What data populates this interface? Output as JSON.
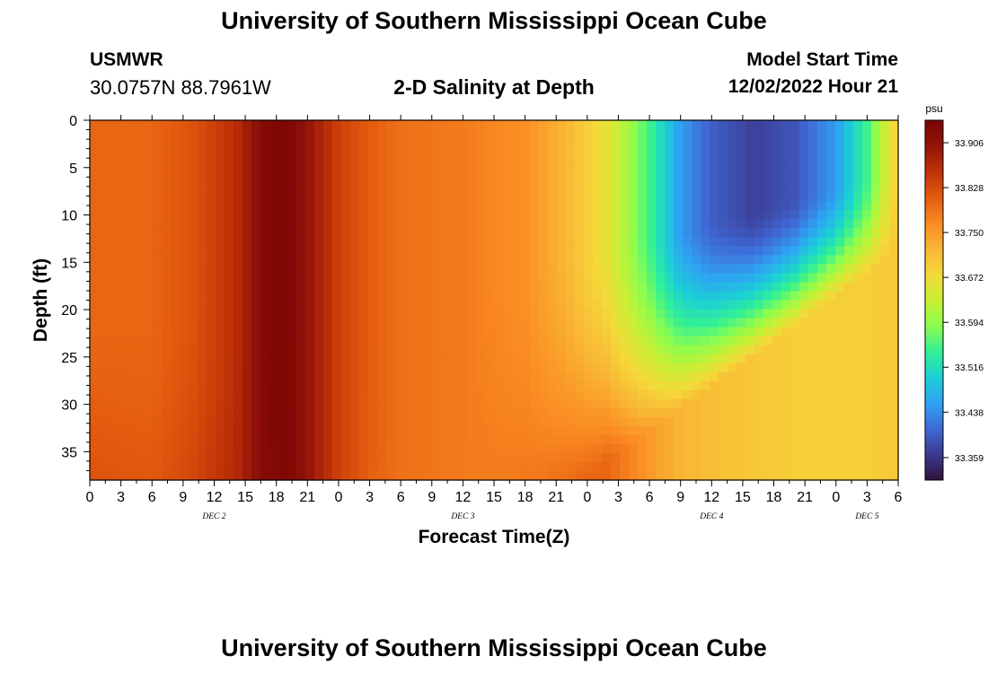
{
  "header": {
    "title": "University of Southern Mississippi Ocean Cube",
    "station": "USMWR",
    "coords": "30.0757N  88.7961W",
    "subtitle": "2-D Salinity at Depth",
    "model_start_label": "Model Start Time",
    "model_start_value": "12/02/2022 Hour 21",
    "footer_title": "University of Southern Mississippi Ocean Cube"
  },
  "chart_data": {
    "type": "heatmap",
    "xlabel": "Forecast Time(Z)",
    "ylabel": "Depth (ft)",
    "x_tick_labels": [
      "0",
      "3",
      "6",
      "9",
      "12",
      "15",
      "18",
      "21",
      "0",
      "3",
      "6",
      "9",
      "12",
      "15",
      "18",
      "21",
      "0",
      "3",
      "6",
      "9",
      "12",
      "15",
      "18",
      "21",
      "0",
      "3",
      "6"
    ],
    "x_range_hours": [
      0,
      78
    ],
    "day_labels": [
      {
        "text": "DEC 2",
        "hour": 12
      },
      {
        "text": "DEC 3",
        "hour": 36
      },
      {
        "text": "DEC 4",
        "hour": 60
      },
      {
        "text": "DEC 5",
        "hour": 75
      }
    ],
    "y_ticks": [
      0,
      5,
      10,
      15,
      20,
      25,
      30,
      35
    ],
    "y_range_ft": [
      0,
      38
    ],
    "colorbar": {
      "unit": "psu",
      "min": 33.32,
      "max": 33.945,
      "ticks": [
        "33.906",
        "33.828",
        "33.750",
        "33.672",
        "33.594",
        "33.516",
        "33.438",
        "33.359"
      ],
      "colors": [
        "#30123b",
        "#3c3a8f",
        "#4069d6",
        "#2fa2f4",
        "#1bd0d5",
        "#32f095",
        "#8cfd4e",
        "#c9ef34",
        "#f5d93a",
        "#f9b534",
        "#fa8a22",
        "#e35a0e",
        "#c03207",
        "#93140a",
        "#7a0403"
      ]
    },
    "salinity_profile": {
      "time_hours": [
        0,
        6,
        10,
        14,
        17,
        19,
        21,
        24,
        27,
        30,
        36,
        42,
        46,
        50,
        54,
        57,
        60,
        64,
        68,
        72,
        75,
        78
      ],
      "surface_psu": [
        33.8,
        33.8,
        33.82,
        33.86,
        33.93,
        33.94,
        33.9,
        33.84,
        33.81,
        33.79,
        33.78,
        33.76,
        33.72,
        33.66,
        33.55,
        33.45,
        33.4,
        33.37,
        33.39,
        33.45,
        33.55,
        33.7
      ],
      "bottom_psu": [
        33.86,
        33.84,
        33.86,
        33.88,
        33.92,
        33.93,
        33.9,
        33.84,
        33.8,
        33.79,
        33.78,
        33.79,
        33.8,
        33.8,
        33.75,
        33.72,
        33.71,
        33.7,
        33.69,
        33.69,
        33.69,
        33.7
      ]
    }
  }
}
